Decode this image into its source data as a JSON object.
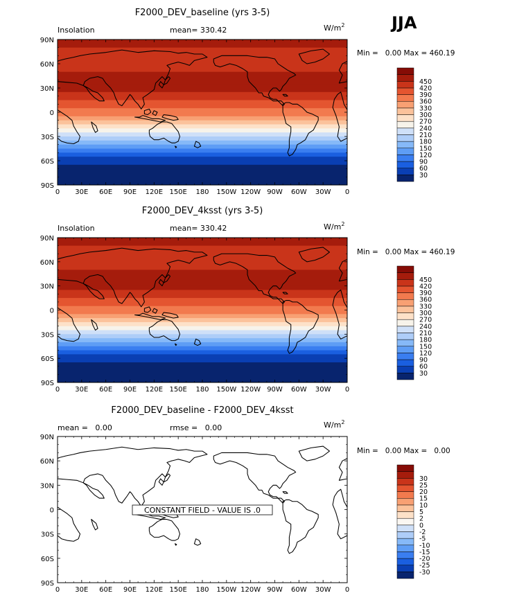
{
  "season": "JJA",
  "colors": {
    "abs_fills": [
      "#08246e",
      "#0a3fb3",
      "#1a5fe0",
      "#3a7ef0",
      "#5e9df5",
      "#86b9f8",
      "#aecdf8",
      "#cfe0f8",
      "#f7f3ea",
      "#fde1c8",
      "#fbc29b",
      "#f8a073",
      "#f27a4e",
      "#e45530",
      "#c9341a",
      "#a51c0c",
      "#860c06"
    ],
    "diff_fills": [
      "#08246e",
      "#0a3fb3",
      "#1a5fe0",
      "#3a7ef0",
      "#5e9df5",
      "#86b9f8",
      "#aecdf8",
      "#cfe0f8",
      "#fbf7f2",
      "#fde1c8",
      "#fbc29b",
      "#f8a073",
      "#f27a4e",
      "#e45530",
      "#c9341a",
      "#a51c0c",
      "#860c06"
    ]
  },
  "chart_data": [
    {
      "type": "heatmap",
      "title": "F2000_DEV_baseline (yrs 3-5)",
      "field_label": "Insolation",
      "mean_text": "mean= 330.42",
      "units": "W/m",
      "units_exp": "2",
      "minmax_text": "Min =   0.00 Max = 460.19",
      "min": 0.0,
      "max": 460.19,
      "mean": 330.42,
      "x_ticks": [
        "0",
        "30E",
        "60E",
        "90E",
        "120E",
        "150E",
        "180",
        "150W",
        "120W",
        "90W",
        "60W",
        "30W",
        "0"
      ],
      "y_ticks": [
        "90N",
        "60N",
        "30N",
        "0",
        "30S",
        "60S",
        "90S"
      ],
      "xlim": [
        0,
        360
      ],
      "ylim": [
        -90,
        90
      ],
      "levels": [
        "30",
        "60",
        "90",
        "120",
        "150",
        "180",
        "210",
        "240",
        "270",
        "300",
        "330",
        "360",
        "390",
        "420",
        "450"
      ],
      "zonal_profile": {
        "lat": [
          90,
          80,
          75,
          70,
          65,
          60,
          55,
          50,
          45,
          40,
          35,
          30,
          25,
          20,
          15,
          10,
          5,
          0,
          -5,
          -10,
          -15,
          -20,
          -25,
          -30,
          -35,
          -40,
          -45,
          -50,
          -55,
          -60,
          -65,
          -70,
          -80,
          -90
        ],
        "value": [
          460,
          450,
          440,
          432,
          428,
          430,
          440,
          452,
          458,
          460,
          458,
          455,
          448,
          438,
          425,
          410,
          392,
          372,
          350,
          325,
          300,
          272,
          245,
          215,
          185,
          155,
          125,
          95,
          70,
          45,
          22,
          5,
          0,
          0
        ]
      }
    },
    {
      "type": "heatmap",
      "title": "F2000_DEV_4ksst (yrs 3-5)",
      "field_label": "Insolation",
      "mean_text": "mean= 330.42",
      "units": "W/m",
      "units_exp": "2",
      "minmax_text": "Min =   0.00 Max = 460.19",
      "min": 0.0,
      "max": 460.19,
      "mean": 330.42,
      "x_ticks": [
        "0",
        "30E",
        "60E",
        "90E",
        "120E",
        "150E",
        "180",
        "150W",
        "120W",
        "90W",
        "60W",
        "30W",
        "0"
      ],
      "y_ticks": [
        "90N",
        "60N",
        "30N",
        "0",
        "30S",
        "60S",
        "90S"
      ],
      "xlim": [
        0,
        360
      ],
      "ylim": [
        -90,
        90
      ],
      "levels": [
        "30",
        "60",
        "90",
        "120",
        "150",
        "180",
        "210",
        "240",
        "270",
        "300",
        "330",
        "360",
        "390",
        "420",
        "450"
      ],
      "zonal_profile": {
        "lat": [
          90,
          80,
          75,
          70,
          65,
          60,
          55,
          50,
          45,
          40,
          35,
          30,
          25,
          20,
          15,
          10,
          5,
          0,
          -5,
          -10,
          -15,
          -20,
          -25,
          -30,
          -35,
          -40,
          -45,
          -50,
          -55,
          -60,
          -65,
          -70,
          -80,
          -90
        ],
        "value": [
          460,
          450,
          440,
          432,
          428,
          430,
          440,
          452,
          458,
          460,
          458,
          455,
          448,
          438,
          425,
          410,
          392,
          372,
          350,
          325,
          300,
          272,
          245,
          215,
          185,
          155,
          125,
          95,
          70,
          45,
          22,
          5,
          0,
          0
        ]
      }
    },
    {
      "type": "heatmap",
      "title": "F2000_DEV_baseline - F2000_DEV_4ksst",
      "mean_text": "mean =   0.00",
      "rmse_text": "rmse =   0.00",
      "units": "W/m",
      "units_exp": "2",
      "minmax_text": "Min =   0.00 Max =   0.00",
      "min": 0.0,
      "max": 0.0,
      "mean": 0.0,
      "rmse": 0.0,
      "constant_field_text": "CONSTANT FIELD - VALUE IS .0",
      "x_ticks": [
        "0",
        "30E",
        "60E",
        "90E",
        "120E",
        "150E",
        "180",
        "150W",
        "120W",
        "90W",
        "60W",
        "30W",
        "0"
      ],
      "y_ticks": [
        "90N",
        "60N",
        "30N",
        "0",
        "30S",
        "60S",
        "90S"
      ],
      "xlim": [
        0,
        360
      ],
      "ylim": [
        -90,
        90
      ],
      "levels": [
        "-30",
        "-25",
        "-20",
        "-15",
        "-10",
        "-5",
        "-2",
        "0",
        "2",
        "5",
        "10",
        "15",
        "20",
        "25",
        "30"
      ]
    }
  ]
}
